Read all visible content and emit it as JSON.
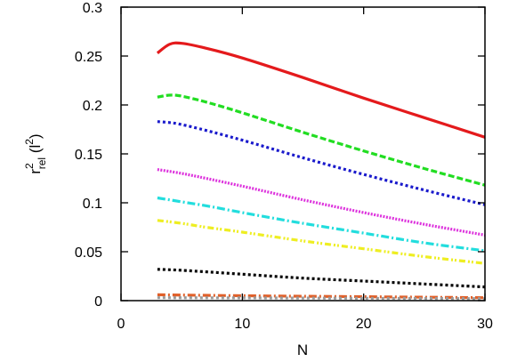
{
  "chart_data": {
    "type": "line",
    "xlabel": "N",
    "ylabel": {
      "base": "r",
      "superscript": "2",
      "subscript": "rel",
      "unit_open": " (l",
      "unit_superscript": "2",
      "unit_close": ")"
    },
    "xlim": [
      0,
      30
    ],
    "ylim": [
      0,
      0.3
    ],
    "x_ticks": [
      0,
      10,
      20,
      30
    ],
    "x_tick_labels": [
      "0",
      "10",
      "20",
      "30"
    ],
    "y_ticks": [
      0,
      0.05,
      0.1,
      0.15,
      0.2,
      0.25,
      0.3
    ],
    "y_tick_labels": [
      "0",
      "0.05",
      "0.1",
      "0.15",
      "0.2",
      "0.25",
      "0.3"
    ],
    "grid": false,
    "legend": "none",
    "series": [
      {
        "color": "#e41a1c",
        "style": "solid",
        "points": [
          [
            3,
            0.253
          ],
          [
            4,
            0.262
          ],
          [
            5,
            0.263
          ],
          [
            7,
            0.258
          ],
          [
            10,
            0.248
          ],
          [
            15,
            0.228
          ],
          [
            20,
            0.207
          ],
          [
            25,
            0.187
          ],
          [
            30,
            0.167
          ]
        ]
      },
      {
        "color": "#22dd22",
        "style": "dashed",
        "points": [
          [
            3,
            0.208
          ],
          [
            4,
            0.21
          ],
          [
            5,
            0.209
          ],
          [
            7,
            0.203
          ],
          [
            10,
            0.192
          ],
          [
            15,
            0.172
          ],
          [
            20,
            0.153
          ],
          [
            25,
            0.135
          ],
          [
            30,
            0.118
          ]
        ]
      },
      {
        "color": "#1a1acc",
        "style": "dotted",
        "points": [
          [
            3,
            0.183
          ],
          [
            4,
            0.182
          ],
          [
            5,
            0.18
          ],
          [
            7,
            0.174
          ],
          [
            10,
            0.164
          ],
          [
            15,
            0.146
          ],
          [
            20,
            0.129
          ],
          [
            25,
            0.113
          ],
          [
            30,
            0.098
          ]
        ]
      },
      {
        "color": "#dd33dd",
        "style": "dense-dotted",
        "points": [
          [
            3,
            0.134
          ],
          [
            5,
            0.13
          ],
          [
            7,
            0.125
          ],
          [
            10,
            0.117
          ],
          [
            15,
            0.103
          ],
          [
            20,
            0.09
          ],
          [
            25,
            0.078
          ],
          [
            30,
            0.067
          ]
        ]
      },
      {
        "color": "#22dddd",
        "style": "dash-dot",
        "points": [
          [
            3,
            0.105
          ],
          [
            5,
            0.101
          ],
          [
            7,
            0.097
          ],
          [
            10,
            0.09
          ],
          [
            15,
            0.079
          ],
          [
            20,
            0.069
          ],
          [
            25,
            0.059
          ],
          [
            30,
            0.051
          ]
        ]
      },
      {
        "color": "#eeee22",
        "style": "dash-dot-dot",
        "points": [
          [
            3,
            0.082
          ],
          [
            5,
            0.079
          ],
          [
            7,
            0.075
          ],
          [
            10,
            0.07
          ],
          [
            15,
            0.061
          ],
          [
            20,
            0.053
          ],
          [
            25,
            0.045
          ],
          [
            30,
            0.038
          ]
        ]
      },
      {
        "color": "#000000",
        "style": "dotted",
        "points": [
          [
            3,
            0.032
          ],
          [
            5,
            0.031
          ],
          [
            10,
            0.027
          ],
          [
            15,
            0.023
          ],
          [
            20,
            0.02
          ],
          [
            25,
            0.017
          ],
          [
            30,
            0.014
          ]
        ]
      },
      {
        "color": "#e0602a",
        "style": "dash-dot",
        "points": [
          [
            3,
            0.006
          ],
          [
            10,
            0.005
          ],
          [
            20,
            0.004
          ],
          [
            30,
            0.003
          ]
        ]
      },
      {
        "color": "#999999",
        "style": "dotted",
        "points": [
          [
            3,
            0.003
          ],
          [
            10,
            0.0028
          ],
          [
            20,
            0.0024
          ],
          [
            30,
            0.002
          ]
        ]
      }
    ]
  }
}
